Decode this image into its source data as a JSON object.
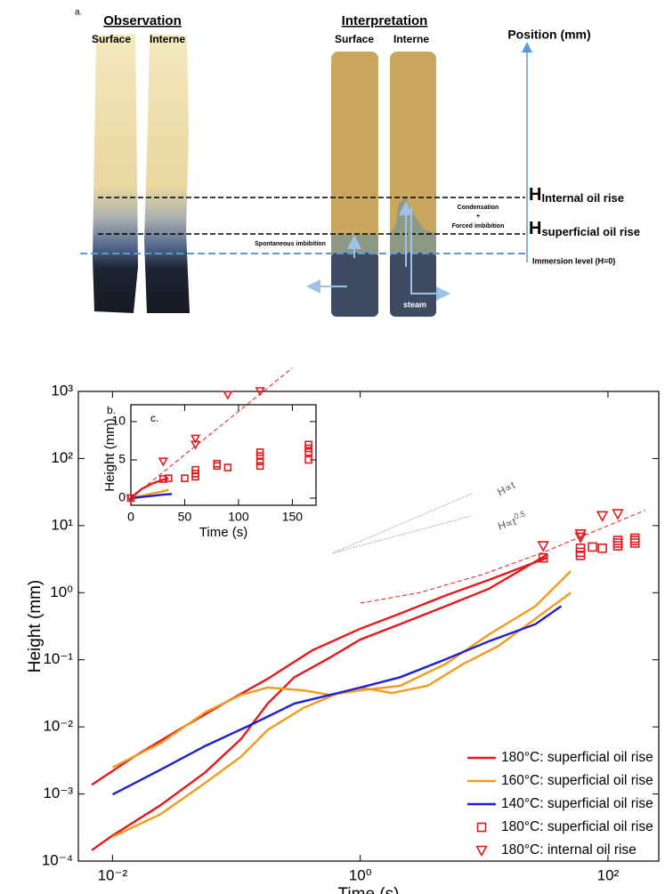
{
  "diagram": {
    "panel": "a.",
    "observation": {
      "title": "Observation",
      "left": "Surface",
      "right": "Interne"
    },
    "interpretation": {
      "title": "Interpretation",
      "left": "Surface",
      "right": "Interne"
    },
    "position_label": "Position (mm)",
    "h_internal": {
      "main": "H",
      "sub": "Internal oil rise"
    },
    "h_superficial": {
      "main": "H",
      "sub": "superficial oil rise"
    },
    "condensation": [
      "Condensation",
      "+",
      "Forced imbibition"
    ],
    "spontaneous": "Spontaneous imbibition",
    "immersion": "Immersion level (H=0)",
    "steam": "steam"
  },
  "chart_data": [
    {
      "type": "line",
      "panel": "b.",
      "xlabel": "Time (s)",
      "ylabel": "Height (mm)",
      "xlog": true,
      "ylog": true,
      "xlim": [
        0.0053,
        257
      ],
      "ylim": [
        0.0001,
        1000
      ],
      "xticks": [
        {
          "value": 0.01,
          "label": "10⁻²"
        },
        {
          "value": 1,
          "label": "10⁰"
        },
        {
          "value": 100,
          "label": "10²"
        }
      ],
      "yticks": [
        {
          "value": 0.0001,
          "label": "10⁻⁴"
        },
        {
          "value": 0.001,
          "label": "10⁻³"
        },
        {
          "value": 0.01,
          "label": "10⁻²"
        },
        {
          "value": 0.1,
          "label": "10⁻¹"
        },
        {
          "value": 1,
          "label": "10⁰"
        },
        {
          "value": 10,
          "label": "10¹"
        },
        {
          "value": 100,
          "label": "10²"
        },
        {
          "value": 1000,
          "label": "10³"
        }
      ],
      "legend": "lower right",
      "annotations": [
        {
          "text": "H∝t",
          "sup": ""
        },
        {
          "text": "H∝t",
          "sup": "0.5"
        }
      ],
      "series": [
        {
          "name": "180°C: superficial oil rise",
          "color": "#e3191c",
          "style": "line",
          "x": [
            0.0068,
            0.0149,
            0.034,
            0.078,
            0.179,
            0.409,
            1.0,
            2.1,
            4.9,
            11,
            32
          ],
          "values": [
            0.00137,
            0.0036,
            0.009,
            0.022,
            0.052,
            0.138,
            0.29,
            0.49,
            0.91,
            1.56,
            3.3
          ]
        },
        {
          "color": "#e3191c",
          "style": "line",
          "x": [
            0.0068,
            0.01,
            0.0244,
            0.056,
            0.109,
            0.179,
            0.294,
            0.57,
            1.0,
            2.1,
            4.9,
            11,
            32
          ],
          "values": [
            0.000145,
            0.00024,
            0.00068,
            0.0021,
            0.0066,
            0.0223,
            0.055,
            0.108,
            0.2,
            0.34,
            0.63,
            1.15,
            3.66
          ]
        },
        {
          "name": "160°C: superficial oil rise",
          "color": "#f39a1b",
          "style": "line",
          "x": [
            0.01,
            0.0244,
            0.056,
            0.109,
            0.179,
            0.347,
            0.57,
            1.0,
            2.1,
            4.9,
            11,
            26,
            50
          ],
          "values": [
            0.0025,
            0.0057,
            0.0165,
            0.03,
            0.0386,
            0.035,
            0.03,
            0.035,
            0.041,
            0.087,
            0.24,
            0.63,
            2.1
          ]
        },
        {
          "color": "#f39a1b",
          "style": "line",
          "x": [
            0.01,
            0.0244,
            0.056,
            0.109,
            0.179,
            0.347,
            0.67,
            1.0,
            1.8,
            3.5,
            6.8,
            13,
            50
          ],
          "values": [
            0.00023,
            0.0005,
            0.00146,
            0.0036,
            0.009,
            0.0192,
            0.032,
            0.0386,
            0.032,
            0.041,
            0.087,
            0.16,
            1.0
          ]
        },
        {
          "name": "140°C: superficial oil rise",
          "color": "#1f1fd1",
          "style": "line",
          "x": [
            0.01,
            0.0244,
            0.056,
            0.128,
            0.294,
            0.57,
            1.0,
            2.1,
            4.9,
            11,
            26,
            42
          ],
          "values": [
            0.00098,
            0.0023,
            0.0052,
            0.0105,
            0.0223,
            0.03,
            0.0386,
            0.055,
            0.102,
            0.19,
            0.34,
            0.63
          ]
        },
        {
          "color": "#e3191c",
          "style": "dashed",
          "x": [
            1,
            3,
            10,
            30,
            100,
            200
          ],
          "values": [
            0.7,
            1.0,
            1.9,
            4,
            10,
            17
          ]
        },
        {
          "color": "#999999",
          "style": "dotted",
          "x": [
            0.6,
            8
          ],
          "values": [
            3.9,
            30
          ]
        },
        {
          "color": "#999999",
          "style": "dotted",
          "x": [
            0.6,
            8
          ],
          "values": [
            3.9,
            14
          ]
        },
        {
          "name": "180°C: superficial oil rise",
          "color": "#e3191c",
          "style": "square",
          "x": [
            30,
            60,
            60,
            60,
            75,
            90,
            120,
            120,
            120,
            165,
            165,
            165
          ],
          "values": [
            3.3,
            3.6,
            4,
            4.6,
            4.8,
            4.6,
            5,
            5.5,
            6,
            5.5,
            6,
            6.5
          ]
        },
        {
          "name": "180°C: internal oil rise",
          "color": "#e3191c",
          "style": "triangle",
          "x": [
            30,
            60,
            60,
            90,
            120
          ],
          "values": [
            5,
            6.7,
            7.5,
            14,
            15
          ]
        }
      ]
    },
    {
      "type": "line",
      "panel": "c.",
      "xlabel": "Time (s)",
      "ylabel": "Height (mm)",
      "xlog": false,
      "ylog": false,
      "xlim": [
        0,
        172
      ],
      "ylim": [
        -0.93,
        12.2
      ],
      "xticks": [
        0,
        50,
        100,
        150
      ],
      "yticks": [
        0,
        5,
        10
      ],
      "series": [
        {
          "color": "#e3191c",
          "style": "dashed",
          "x": [
            0,
            150
          ],
          "values": [
            0,
            17
          ]
        },
        {
          "color": "#e3191c",
          "style": "line",
          "x": [
            0,
            5,
            10,
            20,
            30,
            35
          ],
          "values": [
            0,
            0.6,
            1.2,
            1.9,
            2.4,
            2.6
          ]
        },
        {
          "color": "#f39a1b",
          "style": "line",
          "x": [
            0,
            10,
            20,
            30,
            35
          ],
          "values": [
            0,
            0.3,
            0.6,
            0.9,
            1.1
          ]
        },
        {
          "color": "#1f1fd1",
          "style": "line",
          "x": [
            0,
            10,
            20,
            30,
            38
          ],
          "values": [
            0,
            0.15,
            0.3,
            0.45,
            0.55
          ]
        },
        {
          "color": "#e3191c",
          "style": "square",
          "x": [
            0,
            30,
            35,
            50,
            60,
            60,
            60,
            80,
            80,
            90,
            120,
            120,
            120,
            120,
            165,
            165,
            165,
            165
          ],
          "values": [
            0,
            2.5,
            2.6,
            2.6,
            2.8,
            3.2,
            3.7,
            4.5,
            4.2,
            4,
            4.2,
            4.8,
            5.5,
            6,
            5,
            6,
            6.5,
            7
          ]
        },
        {
          "color": "#e3191c",
          "style": "triangle",
          "x": [
            0,
            30,
            60,
            60,
            90,
            120
          ],
          "values": [
            0,
            4.8,
            7,
            7.8,
            13.5,
            14
          ]
        }
      ]
    }
  ]
}
